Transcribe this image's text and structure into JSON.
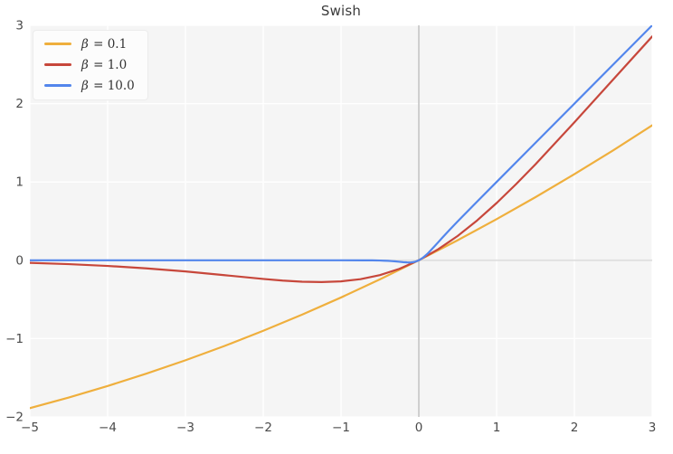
{
  "palette": {
    "figure_bg": "#ffffff",
    "plot_bg": "#f5f5f5",
    "grid": "#ffffff",
    "zero_line_v": "#cbcbcb",
    "zero_line_h": "#e0e0e0",
    "tick_text": "#4a4a4a",
    "title_text": "#3b3b3b",
    "legend_bg": "#fcfcfc",
    "legend_border": "#ececec"
  },
  "chart_data": {
    "type": "line",
    "title": "Swish",
    "xlabel": "",
    "ylabel": "",
    "xlim": [
      -5,
      3
    ],
    "ylim": [
      -2,
      3
    ],
    "x_ticks": [
      -5,
      -4,
      -3,
      -2,
      -1,
      0,
      1,
      2,
      3
    ],
    "x_tick_labels": [
      "−5",
      "−4",
      "−3",
      "−2",
      "−1",
      "0",
      "1",
      "2",
      "3"
    ],
    "y_ticks": [
      -2,
      -1,
      0,
      1,
      2,
      3
    ],
    "y_tick_labels": [
      "−2",
      "−1",
      "0",
      "1",
      "2",
      "3"
    ],
    "grid": true,
    "zero_lines": true,
    "legend_position": "upper-left",
    "series": [
      {
        "name": "β = 0.1",
        "color": "#efaf3d",
        "points": [
          [
            -5,
            -1.888
          ],
          [
            -4.5,
            -1.752
          ],
          [
            -4,
            -1.605
          ],
          [
            -3.5,
            -1.447
          ],
          [
            -3,
            -1.277
          ],
          [
            -2.5,
            -1.095
          ],
          [
            -2,
            -0.9
          ],
          [
            -1.5,
            -0.694
          ],
          [
            -1,
            -0.475
          ],
          [
            -0.5,
            -0.244
          ],
          [
            0,
            0
          ],
          [
            0.5,
            0.256
          ],
          [
            1,
            0.525
          ],
          [
            1.5,
            0.806
          ],
          [
            2,
            1.1
          ],
          [
            2.5,
            1.405
          ],
          [
            3,
            1.723
          ]
        ]
      },
      {
        "name": "β = 1.0",
        "color": "#c7473b",
        "points": [
          [
            -5,
            -0.033
          ],
          [
            -4.5,
            -0.049
          ],
          [
            -4,
            -0.072
          ],
          [
            -3.5,
            -0.103
          ],
          [
            -3,
            -0.142
          ],
          [
            -2.5,
            -0.19
          ],
          [
            -2,
            -0.238
          ],
          [
            -1.75,
            -0.259
          ],
          [
            -1.5,
            -0.274
          ],
          [
            -1.25,
            -0.278
          ],
          [
            -1,
            -0.269
          ],
          [
            -0.75,
            -0.241
          ],
          [
            -0.5,
            -0.189
          ],
          [
            -0.25,
            -0.109
          ],
          [
            0,
            0
          ],
          [
            0.25,
            0.141
          ],
          [
            0.5,
            0.311
          ],
          [
            0.75,
            0.509
          ],
          [
            1,
            0.731
          ],
          [
            1.25,
            0.972
          ],
          [
            1.5,
            1.226
          ],
          [
            2,
            1.762
          ],
          [
            2.5,
            2.31
          ],
          [
            3,
            2.858
          ]
        ]
      },
      {
        "name": "β = 10.0",
        "color": "#5386ec",
        "points": [
          [
            -5,
            0
          ],
          [
            -3,
            0
          ],
          [
            -2,
            0
          ],
          [
            -1.5,
            0
          ],
          [
            -1,
            0
          ],
          [
            -0.7,
            -0.001
          ],
          [
            -0.6,
            -0.001
          ],
          [
            -0.5,
            -0.003
          ],
          [
            -0.45,
            -0.005
          ],
          [
            -0.4,
            -0.007
          ],
          [
            -0.35,
            -0.01
          ],
          [
            -0.3,
            -0.014
          ],
          [
            -0.25,
            -0.019
          ],
          [
            -0.2,
            -0.024
          ],
          [
            -0.15,
            -0.027
          ],
          [
            -0.125,
            -0.028
          ],
          [
            -0.1,
            -0.027
          ],
          [
            -0.075,
            -0.024
          ],
          [
            -0.05,
            -0.019
          ],
          [
            -0.025,
            -0.011
          ],
          [
            0,
            0
          ],
          [
            0.025,
            0.014
          ],
          [
            0.05,
            0.031
          ],
          [
            0.075,
            0.051
          ],
          [
            0.1,
            0.073
          ],
          [
            0.125,
            0.097
          ],
          [
            0.15,
            0.123
          ],
          [
            0.2,
            0.176
          ],
          [
            0.25,
            0.231
          ],
          [
            0.3,
            0.286
          ],
          [
            0.4,
            0.393
          ],
          [
            0.5,
            0.497
          ],
          [
            0.75,
            0.75
          ],
          [
            1,
            1.0
          ],
          [
            1.5,
            1.5
          ],
          [
            2,
            2.0
          ],
          [
            3,
            3.0
          ]
        ]
      }
    ]
  }
}
